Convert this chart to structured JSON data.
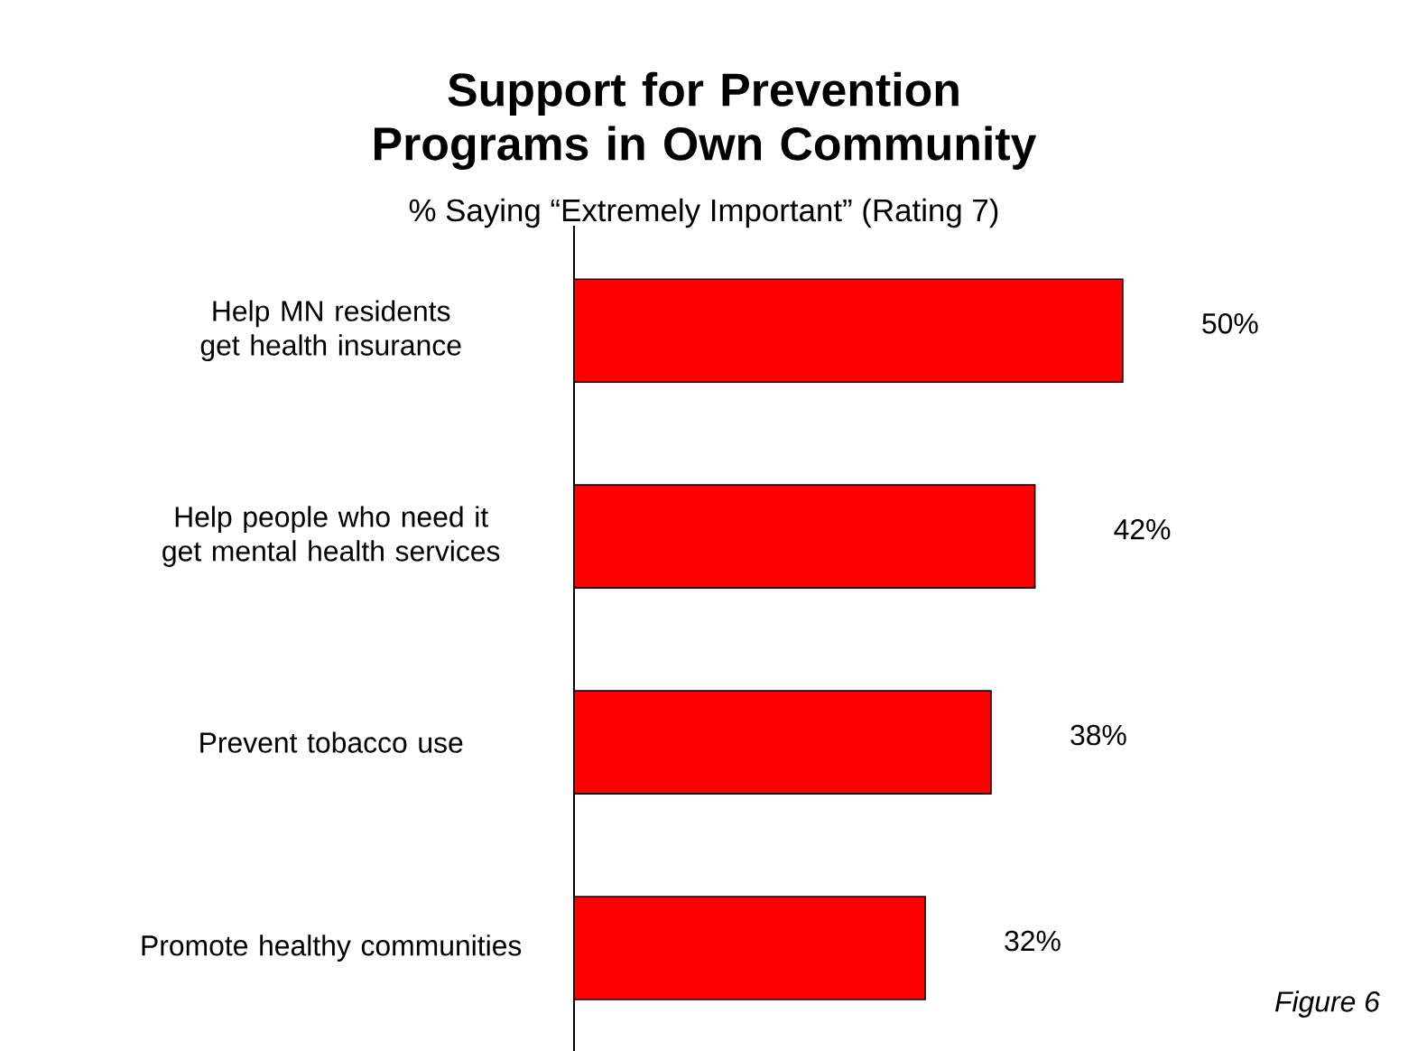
{
  "chart_data": {
    "type": "bar",
    "orientation": "horizontal",
    "title": "Support for Prevention Programs in Own Community",
    "subtitle": "% Saying “Extremely Important” (Rating 7)",
    "categories": [
      "Help MN residents get health insurance",
      "Help people who need it get mental health services",
      "Prevent tobacco use",
      "Promote healthy communities"
    ],
    "values": [
      50,
      42,
      38,
      32
    ],
    "value_labels": [
      "50%",
      "42%",
      "38%",
      "32%"
    ],
    "color": "#ff0000",
    "tick_labels": "y",
    "grid": false,
    "annotations": [
      "Figure 6"
    ]
  }
}
